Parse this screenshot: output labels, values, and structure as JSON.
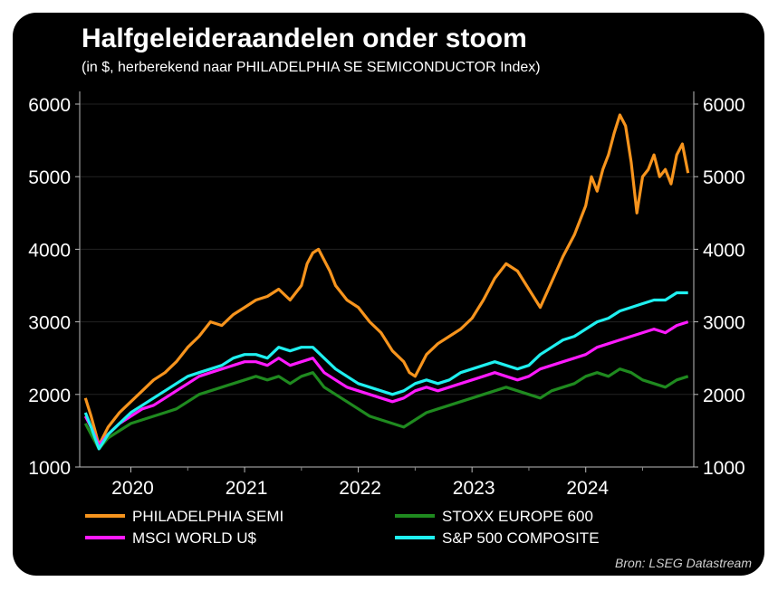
{
  "title": "Halfgeleideraandelen onder stoom",
  "subtitle": "(in $, herberekend naar PHILADELPHIA SE SEMICONDUCTOR Index)",
  "source": "Bron: LSEG Datastream",
  "colors": {
    "background": "#000000",
    "text": "#ffffff",
    "grid": "#222222"
  },
  "chart_data": {
    "type": "line",
    "ylim": [
      1000,
      6000
    ],
    "yticks": [
      1000,
      2000,
      3000,
      4000,
      5000,
      6000
    ],
    "ytick_labels": [
      "1000",
      "2000",
      "3000",
      "4000",
      "5000",
      "6000"
    ],
    "xlim": [
      2019.55,
      2024.95
    ],
    "xticks": [
      2020,
      2021,
      2022,
      2023,
      2024
    ],
    "xtick_labels": [
      "2020",
      "2021",
      "2022",
      "2023",
      "2024"
    ],
    "grid": true,
    "dual_y_axis": true,
    "legend_position": "bottom",
    "series": [
      {
        "name": "PHILADELPHIA SEMI",
        "color": "#f7941d",
        "x": [
          2019.6,
          2019.65,
          2019.72,
          2019.8,
          2019.9,
          2020.0,
          2020.1,
          2020.2,
          2020.3,
          2020.4,
          2020.5,
          2020.6,
          2020.7,
          2020.8,
          2020.9,
          2021.0,
          2021.1,
          2021.2,
          2021.3,
          2021.4,
          2021.5,
          2021.55,
          2021.6,
          2021.65,
          2021.7,
          2021.75,
          2021.8,
          2021.9,
          2022.0,
          2022.1,
          2022.2,
          2022.3,
          2022.4,
          2022.45,
          2022.5,
          2022.55,
          2022.6,
          2022.7,
          2022.8,
          2022.9,
          2023.0,
          2023.1,
          2023.2,
          2023.3,
          2023.4,
          2023.5,
          2023.6,
          2023.7,
          2023.8,
          2023.9,
          2024.0,
          2024.05,
          2024.1,
          2024.15,
          2024.2,
          2024.25,
          2024.3,
          2024.35,
          2024.4,
          2024.45,
          2024.5,
          2024.55,
          2024.6,
          2024.65,
          2024.7,
          2024.75,
          2024.8,
          2024.85,
          2024.9
        ],
        "values": [
          1950,
          1700,
          1300,
          1550,
          1750,
          1900,
          2050,
          2200,
          2300,
          2450,
          2650,
          2800,
          3000,
          2950,
          3100,
          3200,
          3300,
          3350,
          3450,
          3300,
          3500,
          3800,
          3950,
          4000,
          3850,
          3700,
          3500,
          3300,
          3200,
          3000,
          2850,
          2600,
          2450,
          2300,
          2250,
          2400,
          2550,
          2700,
          2800,
          2900,
          3050,
          3300,
          3600,
          3800,
          3700,
          3450,
          3200,
          3550,
          3900,
          4200,
          4600,
          5000,
          4800,
          5100,
          5300,
          5600,
          5850,
          5700,
          5200,
          4500,
          5000,
          5100,
          5300,
          5000,
          5100,
          4900,
          5300,
          5450,
          5050
        ]
      },
      {
        "name": "STOXX EUROPE 600",
        "color": "#1f8a1f",
        "x": [
          2019.6,
          2019.65,
          2019.72,
          2019.8,
          2019.9,
          2020.0,
          2020.1,
          2020.2,
          2020.3,
          2020.4,
          2020.5,
          2020.6,
          2020.7,
          2020.8,
          2020.9,
          2021.0,
          2021.1,
          2021.2,
          2021.3,
          2021.4,
          2021.5,
          2021.6,
          2021.7,
          2021.8,
          2021.9,
          2022.0,
          2022.1,
          2022.2,
          2022.3,
          2022.4,
          2022.5,
          2022.6,
          2022.7,
          2022.8,
          2022.9,
          2023.0,
          2023.1,
          2023.2,
          2023.3,
          2023.4,
          2023.5,
          2023.6,
          2023.7,
          2023.8,
          2023.9,
          2024.0,
          2024.1,
          2024.2,
          2024.3,
          2024.4,
          2024.5,
          2024.6,
          2024.7,
          2024.8,
          2024.9
        ],
        "values": [
          1600,
          1450,
          1250,
          1400,
          1500,
          1600,
          1650,
          1700,
          1750,
          1800,
          1900,
          2000,
          2050,
          2100,
          2150,
          2200,
          2250,
          2200,
          2250,
          2150,
          2250,
          2300,
          2100,
          2000,
          1900,
          1800,
          1700,
          1650,
          1600,
          1550,
          1650,
          1750,
          1800,
          1850,
          1900,
          1950,
          2000,
          2050,
          2100,
          2050,
          2000,
          1950,
          2050,
          2100,
          2150,
          2250,
          2300,
          2250,
          2350,
          2300,
          2200,
          2150,
          2100,
          2200,
          2250
        ]
      },
      {
        "name": "MSCI WORLD U$",
        "color": "#ff1aff",
        "x": [
          2019.6,
          2019.65,
          2019.72,
          2019.8,
          2019.9,
          2020.0,
          2020.1,
          2020.2,
          2020.3,
          2020.4,
          2020.5,
          2020.6,
          2020.7,
          2020.8,
          2020.9,
          2021.0,
          2021.1,
          2021.2,
          2021.3,
          2021.4,
          2021.5,
          2021.6,
          2021.7,
          2021.8,
          2021.9,
          2022.0,
          2022.1,
          2022.2,
          2022.3,
          2022.4,
          2022.5,
          2022.6,
          2022.7,
          2022.8,
          2022.9,
          2023.0,
          2023.1,
          2023.2,
          2023.3,
          2023.4,
          2023.5,
          2023.6,
          2023.7,
          2023.8,
          2023.9,
          2024.0,
          2024.1,
          2024.2,
          2024.3,
          2024.4,
          2024.5,
          2024.6,
          2024.7,
          2024.8,
          2024.9
        ],
        "values": [
          1700,
          1550,
          1300,
          1450,
          1600,
          1700,
          1800,
          1850,
          1950,
          2050,
          2150,
          2250,
          2300,
          2350,
          2400,
          2450,
          2450,
          2400,
          2500,
          2400,
          2450,
          2500,
          2300,
          2200,
          2100,
          2050,
          2000,
          1950,
          1900,
          1950,
          2050,
          2100,
          2050,
          2100,
          2150,
          2200,
          2250,
          2300,
          2250,
          2200,
          2250,
          2350,
          2400,
          2450,
          2500,
          2550,
          2650,
          2700,
          2750,
          2800,
          2850,
          2900,
          2850,
          2950,
          3000
        ]
      },
      {
        "name": "S&P 500 COMPOSITE",
        "color": "#1ff0f0",
        "x": [
          2019.6,
          2019.65,
          2019.72,
          2019.8,
          2019.9,
          2020.0,
          2020.1,
          2020.2,
          2020.3,
          2020.4,
          2020.5,
          2020.6,
          2020.7,
          2020.8,
          2020.9,
          2021.0,
          2021.1,
          2021.2,
          2021.3,
          2021.4,
          2021.5,
          2021.6,
          2021.7,
          2021.8,
          2021.9,
          2022.0,
          2022.1,
          2022.2,
          2022.3,
          2022.4,
          2022.5,
          2022.6,
          2022.7,
          2022.8,
          2022.9,
          2023.0,
          2023.1,
          2023.2,
          2023.3,
          2023.4,
          2023.5,
          2023.6,
          2023.7,
          2023.8,
          2023.9,
          2024.0,
          2024.1,
          2024.2,
          2024.3,
          2024.4,
          2024.5,
          2024.6,
          2024.7,
          2024.8,
          2024.9
        ],
        "values": [
          1750,
          1550,
          1250,
          1450,
          1600,
          1750,
          1850,
          1950,
          2050,
          2150,
          2250,
          2300,
          2350,
          2400,
          2500,
          2550,
          2550,
          2500,
          2650,
          2600,
          2650,
          2650,
          2500,
          2350,
          2250,
          2150,
          2100,
          2050,
          2000,
          2050,
          2150,
          2200,
          2150,
          2200,
          2300,
          2350,
          2400,
          2450,
          2400,
          2350,
          2400,
          2550,
          2650,
          2750,
          2800,
          2900,
          3000,
          3050,
          3150,
          3200,
          3250,
          3300,
          3300,
          3400,
          3400
        ]
      }
    ]
  }
}
